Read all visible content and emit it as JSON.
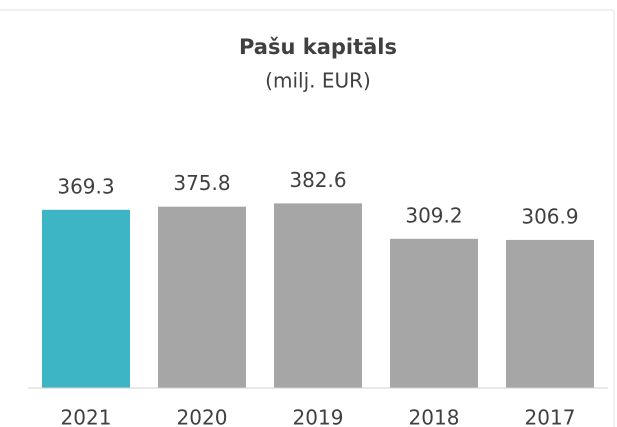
{
  "chart_data": {
    "type": "bar",
    "title": "Pašu kapitāls",
    "subtitle": "(milj. EUR)",
    "categories": [
      "2021",
      "2020",
      "2019",
      "2018",
      "2017"
    ],
    "values": [
      369.3,
      375.8,
      382.6,
      309.2,
      306.9
    ],
    "colors": [
      "#3db5c4",
      "#a6a6a6",
      "#a6a6a6",
      "#a6a6a6",
      "#a6a6a6"
    ],
    "ylim": [
      0,
      400
    ],
    "grid": false
  }
}
